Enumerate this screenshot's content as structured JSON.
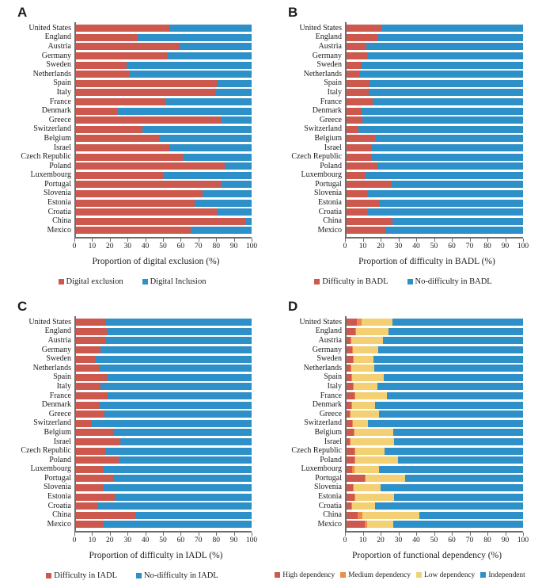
{
  "colors": {
    "red": "#CD584E",
    "blue": "#2E90C8",
    "orange": "#EF8A4A",
    "yellow": "#F2D073",
    "axis": "#6e6e6e"
  },
  "chart_data": [
    {
      "panel": "A",
      "type": "bar",
      "orientation": "horizontal",
      "stacked": true,
      "xlabel": "Proportion of digital exclusion (%)",
      "xlim": [
        0,
        100
      ],
      "xticks": [
        0,
        10,
        20,
        30,
        40,
        50,
        60,
        70,
        80,
        90,
        100
      ],
      "legend_position": "bottom",
      "categories": [
        "United States",
        "England",
        "Austria",
        "Germany",
        "Sweden",
        "Netherlands",
        "Spain",
        "Italy",
        "France",
        "Denmark",
        "Greece",
        "Switzerland",
        "Belgium",
        "Israel",
        "Czech Republic",
        "Poland",
        "Luxembourg",
        "Portugal",
        "Slovenia",
        "Estonia",
        "Croatia",
        "China",
        "Mexico"
      ],
      "series": [
        {
          "name": "Digital exclusion",
          "color": "#CD584E",
          "values": [
            53.3,
            34.8,
            59.1,
            52.0,
            28.7,
            30.1,
            80.0,
            79.3,
            51.2,
            23.6,
            82.6,
            37.7,
            47.3,
            53.1,
            60.7,
            84.6,
            49.8,
            82.3,
            72.2,
            67.7,
            80.0,
            96.8,
            65.5
          ]
        },
        {
          "name": "Digital Inclusion",
          "color": "#2E90C8",
          "values": [
            46.7,
            65.2,
            40.9,
            48.0,
            71.3,
            69.9,
            20.0,
            20.7,
            48.8,
            76.4,
            17.4,
            62.3,
            52.7,
            46.9,
            39.3,
            15.4,
            50.2,
            17.7,
            27.8,
            32.3,
            20.0,
            3.2,
            34.5
          ]
        }
      ]
    },
    {
      "panel": "B",
      "type": "bar",
      "orientation": "horizontal",
      "stacked": true,
      "xlabel": "Proportion of difficulty in BADL (%)",
      "xlim": [
        0,
        100
      ],
      "xticks": [
        0,
        10,
        20,
        30,
        40,
        50,
        60,
        70,
        80,
        90,
        100
      ],
      "legend_position": "bottom",
      "categories": [
        "United States",
        "England",
        "Austria",
        "Germany",
        "Sweden",
        "Netherlands",
        "Spain",
        "Italy",
        "France",
        "Denmark",
        "Greece",
        "Switzerland",
        "Belgium",
        "Israel",
        "Czech Republic",
        "Poland",
        "Luxembourg",
        "Portugal",
        "Slovenia",
        "Estonia",
        "Croatia",
        "China",
        "Mexico"
      ],
      "series": [
        {
          "name": "Difficulty in BADL",
          "color": "#CD584E",
          "values": [
            19.6,
            17.6,
            11.2,
            11.9,
            8.4,
            7.1,
            13.2,
            12.4,
            14.6,
            8.6,
            9.1,
            6.8,
            16.6,
            14.0,
            13.9,
            17.4,
            10.8,
            25.5,
            12.1,
            18.3,
            11.5,
            25.8,
            21.8
          ]
        },
        {
          "name": "No-difficulty in BADL",
          "color": "#2E90C8",
          "values": [
            80.4,
            82.4,
            88.8,
            88.1,
            91.6,
            92.9,
            86.8,
            87.6,
            85.4,
            91.4,
            90.9,
            93.2,
            83.4,
            86.0,
            86.1,
            82.6,
            89.2,
            74.5,
            87.9,
            81.7,
            88.5,
            74.2,
            78.2
          ]
        }
      ]
    },
    {
      "panel": "C",
      "type": "bar",
      "orientation": "horizontal",
      "stacked": true,
      "xlabel": "Proportion of difficulty in IADL (%)",
      "xlim": [
        0,
        100
      ],
      "xticks": [
        0,
        10,
        20,
        30,
        40,
        50,
        60,
        70,
        80,
        90,
        100
      ],
      "legend_position": "bottom",
      "categories": [
        "United States",
        "England",
        "Austria",
        "Germany",
        "Sweden",
        "Netherlands",
        "Spain",
        "Italy",
        "France",
        "Denmark",
        "Greece",
        "Switzerland",
        "Belgium",
        "Israel",
        "Czech Republic",
        "Poland",
        "Luxembourg",
        "Portugal",
        "Slovenia",
        "Estonia",
        "Croatia",
        "China",
        "Mexico"
      ],
      "series": [
        {
          "name": "Difficulty in IADL",
          "color": "#CD584E",
          "values": [
            16.5,
            17.5,
            17.2,
            13.9,
            11.2,
            13.0,
            17.5,
            13.9,
            18.0,
            13.7,
            16.1,
            9.2,
            21.1,
            25.2,
            16.8,
            24.2,
            15.2,
            21.5,
            15.1,
            22.0,
            12.5,
            33.7,
            15.4
          ]
        },
        {
          "name": "No-difficulty in IADL",
          "color": "#2E90C8",
          "values": [
            83.5,
            82.5,
            82.8,
            86.1,
            88.8,
            87.0,
            82.5,
            86.1,
            82.0,
            86.3,
            83.9,
            90.8,
            78.9,
            74.8,
            83.2,
            75.8,
            84.8,
            78.5,
            84.9,
            78.0,
            87.5,
            66.3,
            84.6
          ]
        }
      ]
    },
    {
      "panel": "D",
      "type": "bar",
      "orientation": "horizontal",
      "stacked": true,
      "xlabel": "Proportion of functional dependency (%)",
      "xlim": [
        0,
        100
      ],
      "xticks": [
        0,
        10,
        20,
        30,
        40,
        50,
        60,
        70,
        80,
        90,
        100
      ],
      "legend_position": "bottom",
      "categories": [
        "United States",
        "England",
        "Austria",
        "Germany",
        "Sweden",
        "Netherlands",
        "Spain",
        "Italy",
        "France",
        "Denmark",
        "Greece",
        "Switzerland",
        "Belgium",
        "Israel",
        "Czech Republic",
        "Poland",
        "Luxembourg",
        "Portugal",
        "Slovenia",
        "Estonia",
        "Croatia",
        "China",
        "Mexico"
      ],
      "series": [
        {
          "name": "High dependency",
          "color": "#CD584E",
          "values": [
            6.0,
            4.9,
            2.4,
            3.2,
            3.5,
            2.4,
            2.8,
            3.5,
            4.4,
            2.7,
            1.8,
            3.2,
            4.1,
            1.8,
            4.6,
            4.4,
            3.2,
            10.3,
            3.6,
            4.4,
            2.8,
            6.3,
            10.1
          ]
        },
        {
          "name": "Medium dependency",
          "color": "#EF8A4A",
          "values": [
            2.5,
            0.6,
            0.5,
            0.5,
            0.5,
            0.5,
            0.5,
            0.5,
            0.6,
            0.5,
            0.5,
            0.5,
            0.5,
            0.5,
            0.5,
            0.6,
            1.4,
            0.5,
            0.5,
            0.5,
            0.5,
            2.6,
            1.4
          ]
        },
        {
          "name": "Low dependency",
          "color": "#F2D073",
          "values": [
            17.3,
            18.4,
            17.6,
            14.3,
            11.2,
            13.0,
            17.7,
            13.7,
            18.0,
            13.1,
            15.9,
            8.4,
            22.0,
            24.6,
            16.5,
            24.0,
            13.8,
            22.2,
            15.0,
            22.0,
            12.7,
            32.2,
            14.8
          ]
        },
        {
          "name": "Independent",
          "color": "#2E90C8",
          "values": [
            74.2,
            76.1,
            79.5,
            82.0,
            84.8,
            84.1,
            79.0,
            82.3,
            77.0,
            83.7,
            81.8,
            87.9,
            73.4,
            73.1,
            78.4,
            71.0,
            81.6,
            67.0,
            80.9,
            73.1,
            84.0,
            58.9,
            73.7
          ]
        }
      ]
    }
  ]
}
